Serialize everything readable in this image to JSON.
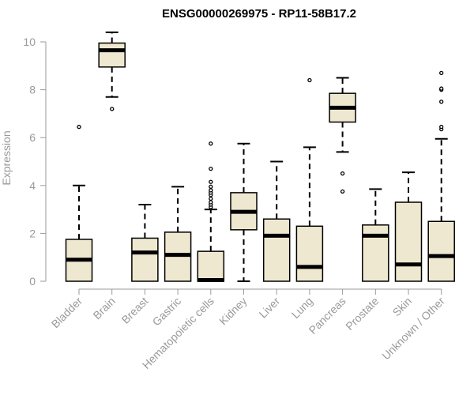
{
  "chart_data": {
    "type": "box",
    "title": "ENSG00000269975 - RP11-58B17.2",
    "xlabel": "",
    "ylabel": "Expression",
    "ylim": [
      0,
      10.5
    ],
    "yticks": [
      "0",
      "2",
      "4",
      "6",
      "8",
      "10"
    ],
    "categories": [
      "Bladder",
      "Brain",
      "Breast",
      "Gastric",
      "Hematopoietic cells",
      "Kidney",
      "Liver",
      "Lung",
      "Pancreas",
      "Prostate",
      "Skin",
      "Unknown / Other"
    ],
    "boxes": [
      {
        "min": 0,
        "q1": 0,
        "median": 0.9,
        "q3": 1.75,
        "max": 4.0,
        "outliers": [
          6.45
        ]
      },
      {
        "min": 7.7,
        "q1": 8.95,
        "median": 9.65,
        "q3": 9.95,
        "max": 10.4,
        "outliers": [
          7.2
        ]
      },
      {
        "min": 0,
        "q1": 0,
        "median": 1.2,
        "q3": 1.8,
        "max": 3.2,
        "outliers": []
      },
      {
        "min": 0,
        "q1": 0,
        "median": 1.1,
        "q3": 2.05,
        "max": 3.95,
        "outliers": []
      },
      {
        "min": 0,
        "q1": 0,
        "median": 0.05,
        "q3": 1.25,
        "max": 3.0,
        "outliers": [
          3.1,
          3.2,
          3.3,
          3.45,
          3.6,
          3.7,
          3.8,
          3.95,
          4.15,
          4.7,
          5.75
        ]
      },
      {
        "min": 0,
        "q1": 2.15,
        "median": 2.9,
        "q3": 3.7,
        "max": 5.75,
        "outliers": []
      },
      {
        "min": 0,
        "q1": 0,
        "median": 1.9,
        "q3": 2.6,
        "max": 5.0,
        "outliers": []
      },
      {
        "min": 0,
        "q1": 0,
        "median": 0.6,
        "q3": 2.3,
        "max": 5.6,
        "outliers": [
          8.4
        ]
      },
      {
        "min": 5.4,
        "q1": 6.65,
        "median": 7.25,
        "q3": 7.85,
        "max": 8.5,
        "outliers": [
          4.5,
          3.75
        ]
      },
      {
        "min": 0,
        "q1": 0,
        "median": 1.9,
        "q3": 2.35,
        "max": 3.85,
        "outliers": []
      },
      {
        "min": 0,
        "q1": 0,
        "median": 0.7,
        "q3": 3.3,
        "max": 4.55,
        "outliers": []
      },
      {
        "min": 0,
        "q1": 0,
        "median": 1.05,
        "q3": 2.5,
        "max": 5.95,
        "outliers": [
          6.35,
          6.45,
          7.5,
          8.0,
          8.05,
          8.7
        ]
      }
    ],
    "colors": {
      "box_fill": "#efe8d0",
      "box_stroke": "#000000",
      "axis": "#9a9a9a",
      "text": "#9a9a9a",
      "title": "#000000"
    }
  }
}
